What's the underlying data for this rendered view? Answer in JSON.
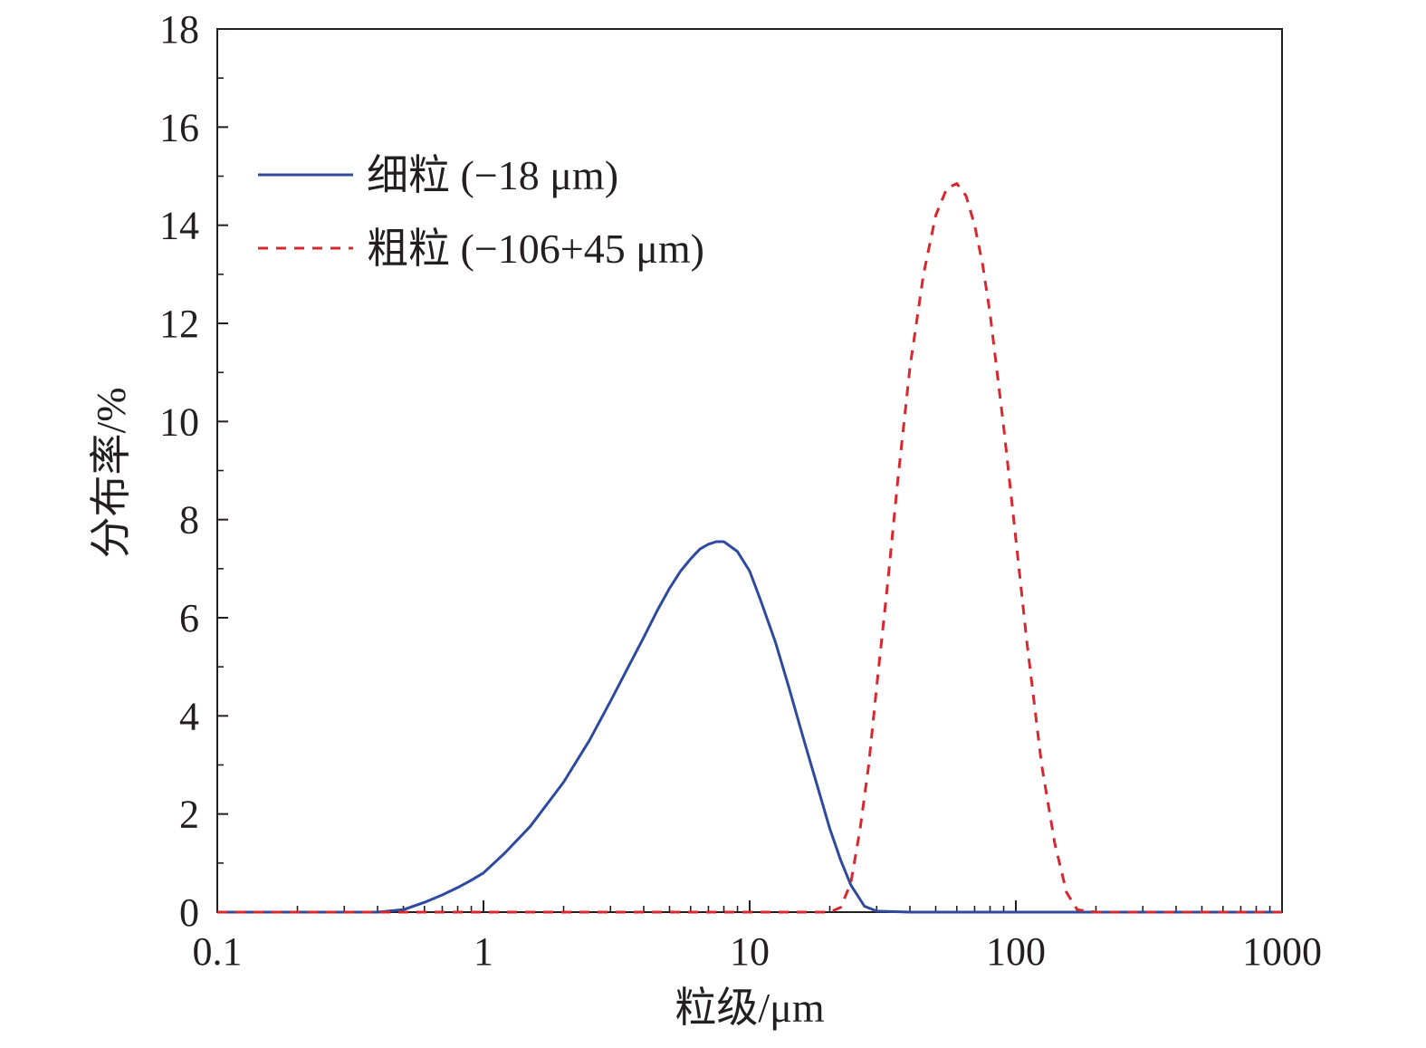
{
  "chart_data": {
    "type": "line",
    "xscale": "log",
    "xlim": [
      0.1,
      1000
    ],
    "ylim": [
      0,
      18
    ],
    "xticks": [
      0.1,
      1,
      10,
      100,
      1000
    ],
    "xtick_labels": [
      "0.1",
      "1",
      "10",
      "100",
      "1000"
    ],
    "yticks": [
      0,
      2,
      4,
      6,
      8,
      10,
      12,
      14,
      16,
      18
    ],
    "ytick_labels": [
      "0",
      "2",
      "4",
      "6",
      "8",
      "10",
      "12",
      "14",
      "16",
      "18"
    ],
    "xlabel": "粒级/μm",
    "ylabel": "分布率/%",
    "grid": false,
    "legend_position": "top-left",
    "series": [
      {
        "name": "细粒 (−18 μm)",
        "color": "#2e4a9e",
        "style": "solid",
        "x": [
          0.1,
          0.2,
          0.3,
          0.4,
          0.5,
          0.6,
          0.7,
          0.8,
          0.9,
          1.0,
          1.2,
          1.5,
          2.0,
          2.5,
          3.0,
          3.5,
          4.0,
          4.5,
          5.0,
          5.5,
          6.0,
          6.5,
          7.0,
          7.5,
          8.0,
          9.0,
          10.0,
          11.0,
          12.5,
          14.0,
          16.0,
          18.0,
          20.0,
          22.0,
          24.0,
          27.0,
          30.0,
          40.0,
          100.0,
          1000.0
        ],
        "y": [
          0,
          0,
          0,
          0,
          0.05,
          0.2,
          0.35,
          0.5,
          0.65,
          0.8,
          1.2,
          1.75,
          2.65,
          3.5,
          4.3,
          5.0,
          5.6,
          6.15,
          6.6,
          6.95,
          7.2,
          7.4,
          7.5,
          7.55,
          7.55,
          7.35,
          6.95,
          6.35,
          5.5,
          4.6,
          3.5,
          2.55,
          1.7,
          1.05,
          0.55,
          0.12,
          0.02,
          0,
          0,
          0
        ]
      },
      {
        "name": "粗粒 (−106+45 μm)",
        "color": "#d7282f",
        "style": "dashed",
        "x": [
          0.1,
          1.0,
          10.0,
          20.0,
          22.0,
          24.0,
          26.0,
          28.0,
          30.0,
          33.0,
          36.0,
          40.0,
          45.0,
          50.0,
          55.0,
          60.0,
          65.0,
          70.0,
          75.0,
          80.0,
          90.0,
          100.0,
          110.0,
          125.0,
          140.0,
          155.0,
          170.0,
          200.0,
          1000.0
        ],
        "y": [
          0,
          0,
          0,
          0,
          0.1,
          0.6,
          1.7,
          3.0,
          4.6,
          6.7,
          8.8,
          11.1,
          13.0,
          14.2,
          14.75,
          14.85,
          14.6,
          14.0,
          13.2,
          12.2,
          9.9,
          7.6,
          5.5,
          3.0,
          1.4,
          0.4,
          0.05,
          0,
          0
        ]
      }
    ]
  }
}
